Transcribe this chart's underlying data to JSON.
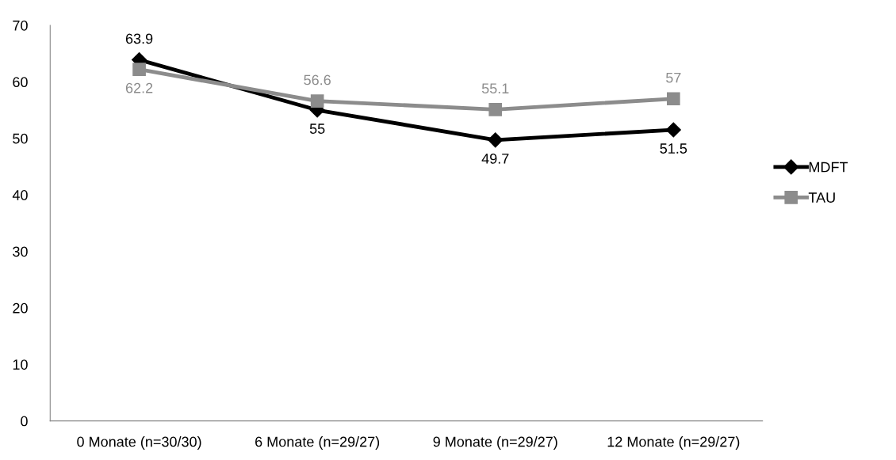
{
  "chart_data": {
    "type": "line",
    "categories": [
      "0 Monate (n=30/30)",
      "6 Monate (n=29/27)",
      "9 Monate (n=29/27)",
      "12 Monate (n=29/27)"
    ],
    "series": [
      {
        "name": "MDFT",
        "color": "#000000",
        "marker": "diamond",
        "values": [
          63.9,
          55,
          49.7,
          51.5
        ]
      },
      {
        "name": "TAU",
        "color": "#8c8c8c",
        "marker": "square",
        "values": [
          62.2,
          56.6,
          55.1,
          57
        ]
      }
    ],
    "ylim": [
      0,
      70
    ],
    "yticks": [
      0,
      10,
      20,
      30,
      40,
      50,
      60,
      70
    ],
    "grid": false,
    "legend": "right",
    "data_labels": true,
    "line_style": "solid"
  }
}
